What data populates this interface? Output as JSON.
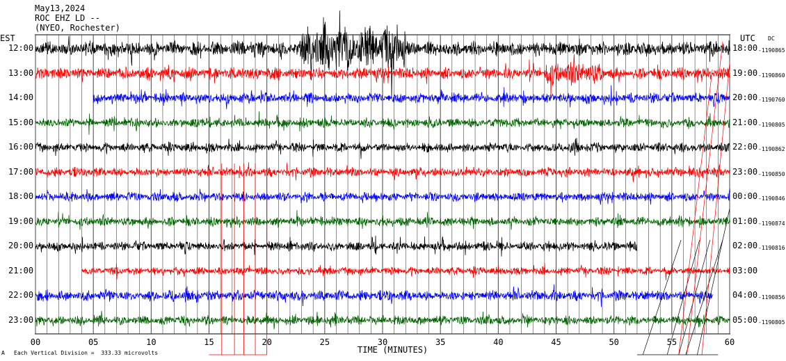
{
  "header": {
    "date": "May13,2024",
    "station": "ROC EHZ LD --",
    "network": "(NYEO, Rochester)"
  },
  "left_tz": "EST",
  "right_tz": "UTC",
  "right_corner": "DC",
  "footer": {
    "xlabel": "TIME (MINUTES)",
    "scale_note": "Each Vertical Division =  333.33 microvolts",
    "corner_mark": "A"
  },
  "colors": [
    "#000000",
    "#ff0000",
    "#0000ff",
    "#006400"
  ],
  "chart_data": {
    "type": "line",
    "title": "May13,2024",
    "xlabel": "TIME (MINUTES)",
    "xlim": [
      0,
      60
    ],
    "x_ticks": [
      "00",
      "05",
      "10",
      "15",
      "20",
      "25",
      "30",
      "35",
      "40",
      "45",
      "50",
      "55",
      "60"
    ],
    "grid": "vertical lines every minute",
    "rows": [
      {
        "left": "12:00",
        "right": "18:00",
        "dc": "-1190865",
        "color": "#000000",
        "start": 0,
        "end": 60,
        "amp": 0.55
      },
      {
        "left": "13:00",
        "right": "19:00",
        "dc": "-1190860",
        "color": "#ff0000",
        "start": 0,
        "end": 60,
        "amp": 0.45
      },
      {
        "left": "14:00",
        "right": "20:00",
        "dc": "-1190760",
        "color": "#0000ff",
        "start": 5,
        "end": 60,
        "amp": 0.4
      },
      {
        "left": "15:00",
        "right": "21:00",
        "dc": "-1190805",
        "color": "#006400",
        "start": 0,
        "end": 60,
        "amp": 0.35
      },
      {
        "left": "16:00",
        "right": "22:00",
        "dc": "-1190862",
        "color": "#000000",
        "start": 0,
        "end": 60,
        "amp": 0.35
      },
      {
        "left": "17:00",
        "right": "23:00",
        "dc": "-1190850",
        "color": "#ff0000",
        "start": 0,
        "end": 60,
        "amp": 0.35
      },
      {
        "left": "18:00",
        "right": "00:00",
        "dc": "-1190846",
        "color": "#0000ff",
        "start": 0,
        "end": 60,
        "amp": 0.35
      },
      {
        "left": "19:00",
        "right": "01:00",
        "dc": "-1190874",
        "color": "#006400",
        "start": 0,
        "end": 60,
        "amp": 0.35
      },
      {
        "left": "20:00",
        "right": "02:00",
        "dc": "-1190816",
        "color": "#000000",
        "start": 0,
        "end": 52,
        "amp": 0.35
      },
      {
        "left": "21:00",
        "right": "03:00",
        "dc": "",
        "color": "#ff0000",
        "start": 4,
        "end": 60,
        "amp": 0.3
      },
      {
        "left": "22:00",
        "right": "04:00",
        "dc": "-1190856",
        "color": "#0000ff",
        "start": 0,
        "end": 58.5,
        "amp": 0.4
      },
      {
        "left": "23:00",
        "right": "05:00",
        "dc": "-1190805",
        "color": "#006400",
        "start": 0,
        "end": 60,
        "amp": 0.35
      }
    ]
  }
}
